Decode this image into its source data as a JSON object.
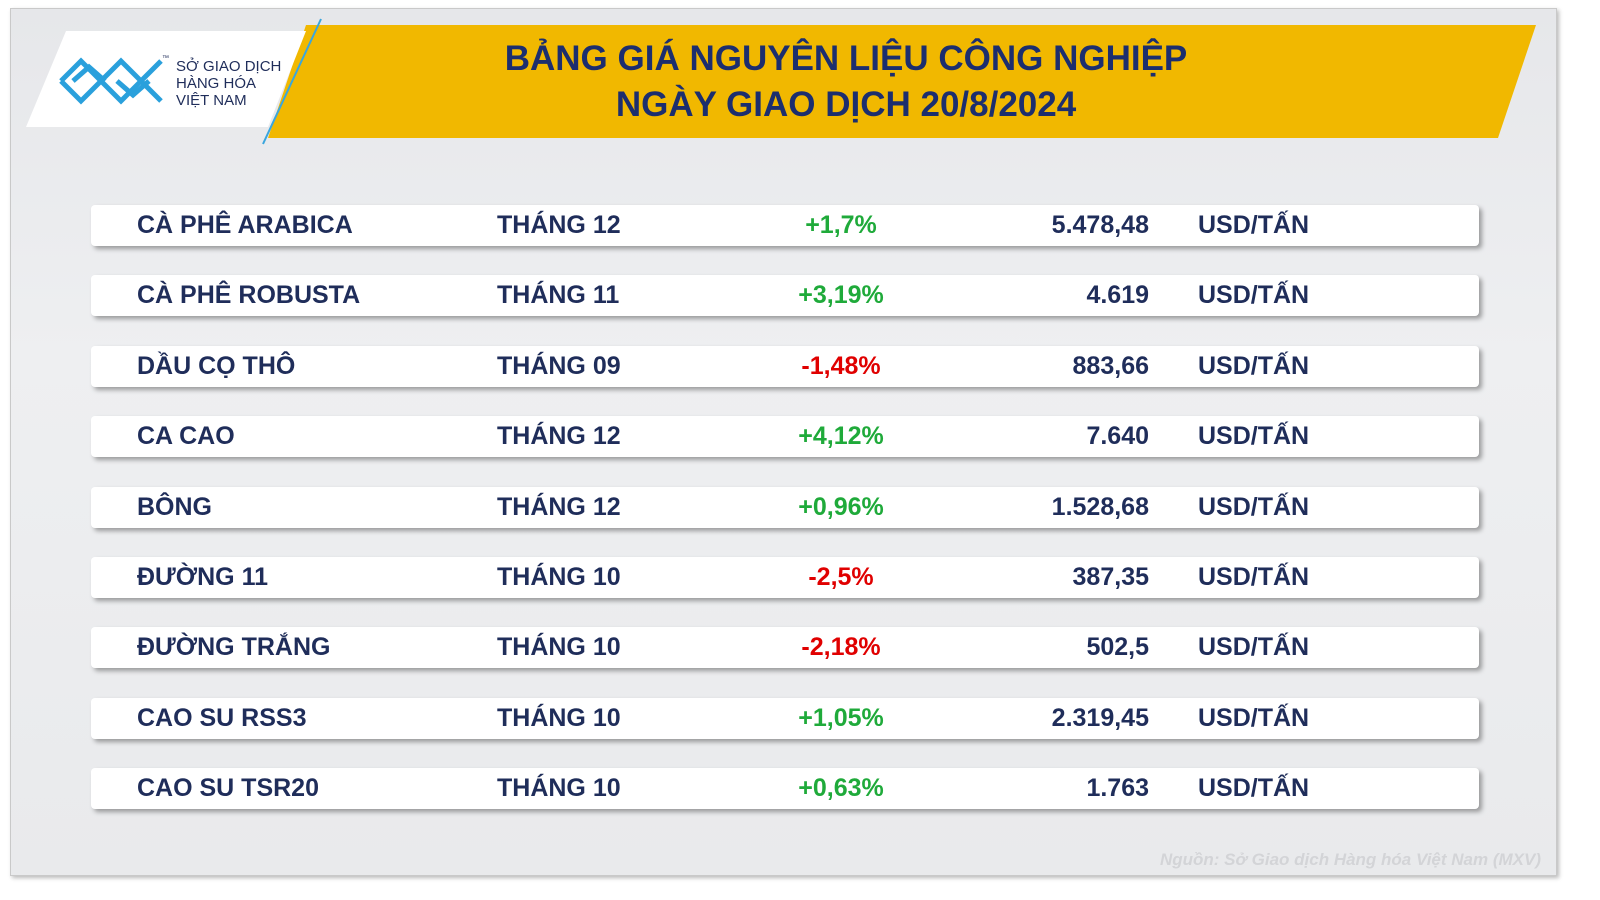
{
  "header": {
    "title_lines": [
      "BẢNG GIÁ NGUYÊN LIỆU CÔNG NGHIỆP",
      "NGÀY GIAO DỊCH 20/8/2024"
    ]
  },
  "logo": {
    "lines": [
      "SỞ GIAO DỊCH",
      "HÀNG HÓA",
      "VIỆT NAM"
    ],
    "mark": "™"
  },
  "table": {
    "rows": [
      [
        "CÀ PHÊ ARABICA",
        "THÁNG 12",
        "+1,7%",
        "5.478,48",
        "USD/TẤN"
      ],
      [
        "CÀ PHÊ ROBUSTA",
        "THÁNG 11",
        "+3,19%",
        "4.619",
        "USD/TẤN"
      ],
      [
        "DẦU CỌ THÔ",
        "THÁNG 09",
        "-1,48%",
        "883,66",
        "USD/TẤN"
      ],
      [
        "CA CAO",
        "THÁNG 12",
        "+4,12%",
        "7.640",
        "USD/TẤN"
      ],
      [
        "BÔNG",
        "THÁNG 12",
        "+0,96%",
        "1.528,68",
        "USD/TẤN"
      ],
      [
        "ĐƯỜNG 11",
        "THÁNG 10",
        "-2,5%",
        "387,35",
        "USD/TẤN"
      ],
      [
        "ĐƯỜNG TRẮNG",
        "THÁNG 10",
        "-2,18%",
        "502,5",
        "USD/TẤN"
      ],
      [
        "CAO SU RSS3",
        "THÁNG 10",
        "+1,05%",
        "2.319,45",
        "USD/TẤN"
      ],
      [
        "CAO SU TSR20",
        "THÁNG 10",
        "+0,63%",
        "1.763",
        "USD/TẤN"
      ]
    ]
  },
  "source": "Nguồn: Sở Giao dịch Hàng hóa Việt Nam (MXV)"
}
